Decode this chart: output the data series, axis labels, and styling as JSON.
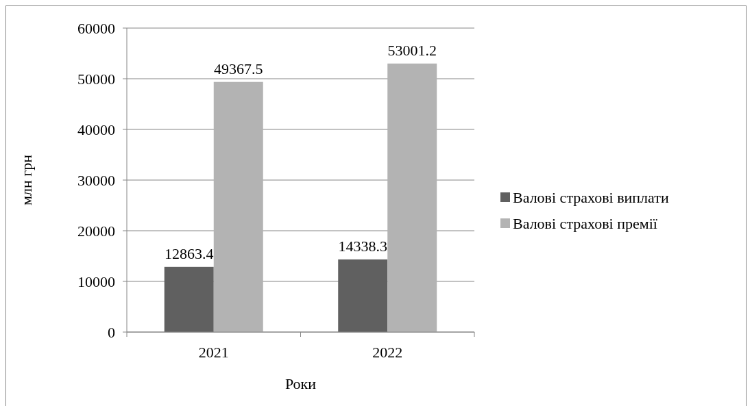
{
  "chart_data": {
    "type": "bar",
    "xlabel": "Роки",
    "ylabel": "млн грн",
    "categories": [
      "2021",
      "2022"
    ],
    "series": [
      {
        "name": "Валові страхові виплати",
        "color": "#606060",
        "values": [
          12863.4,
          14338.3
        ]
      },
      {
        "name": "Валові страхові премії",
        "color": "#b3b3b3",
        "values": [
          49367.5,
          53001.2
        ]
      }
    ],
    "ylim": [
      0,
      60000
    ],
    "yticks": [
      0,
      10000,
      20000,
      30000,
      40000,
      50000,
      60000
    ],
    "grid": "y",
    "legend": "right",
    "data_labels": true
  }
}
